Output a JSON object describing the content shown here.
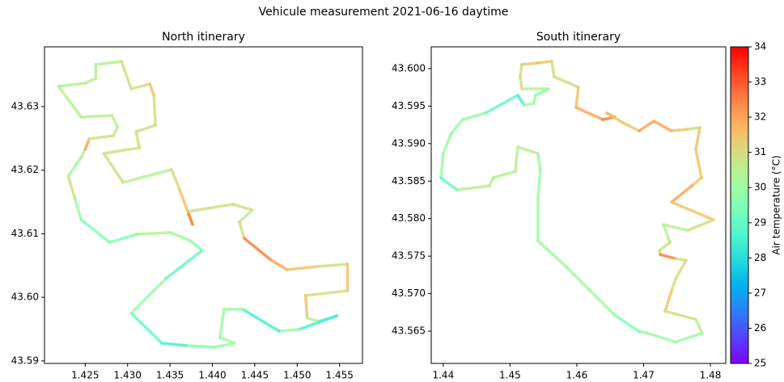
{
  "title": "Vehicule measurement 2021-06-16 daytime",
  "colorbar": {
    "label": "Air temperature (°C)",
    "colormap": "rainbow",
    "lim": [
      25,
      34
    ],
    "ticks": [
      25,
      26,
      27,
      28,
      29,
      30,
      31,
      32,
      33,
      34
    ]
  },
  "chart_data": [
    {
      "type": "line",
      "title": "North itinerary",
      "xlim": [
        1.4202,
        1.4577
      ],
      "ylim": [
        43.5896,
        43.6394
      ],
      "xticks": [
        1.425,
        {
          "value": 1.43,
          "label": "1.430"
        },
        1.435,
        {
          "value": 1.44,
          "label": "1.440"
        },
        1.445,
        {
          "value": 1.45,
          "label": "1.450"
        },
        1.455
      ],
      "yticks": [
        43.59,
        {
          "value": 43.6,
          "label": "43.60"
        },
        43.61,
        43.62,
        43.63
      ],
      "x": [
        1.42186,
        1.425,
        1.42624,
        1.42624,
        1.42928,
        1.43043,
        1.43262,
        1.43309,
        1.43328,
        1.431,
        1.43138,
        1.42719,
        1.42947,
        1.43519,
        1.43614,
        1.43766,
        1.43709,
        1.44242,
        1.44471,
        1.44318,
        1.44375,
        1.4469,
        1.4488,
        1.45242,
        1.45594,
        1.45594,
        1.45099,
        1.45118,
        1.45261,
        1.4547,
        1.45023,
        1.44785,
        1.44356,
        1.44137,
        1.4409,
        1.44261,
        1.44023,
        1.4369,
        1.43404,
        1.43043,
        1.43452,
        1.4388,
        1.43738,
        1.435,
        1.43119,
        1.42786,
        1.42452,
        1.42376,
        1.423,
        1.42452,
        1.425,
        1.42548,
        1.42833,
        1.42881,
        1.42814,
        1.42452,
        1.42186
      ],
      "y": [
        43.63318,
        43.63368,
        43.63445,
        43.6366,
        43.63711,
        43.63279,
        43.63356,
        43.63178,
        43.62708,
        43.62606,
        43.62352,
        43.62263,
        43.61806,
        43.62009,
        43.61692,
        43.61146,
        43.61349,
        43.61463,
        43.61374,
        43.61184,
        43.6093,
        43.60587,
        43.60435,
        43.60485,
        43.60523,
        43.60104,
        43.60028,
        43.59673,
        43.59622,
        43.59711,
        43.59495,
        43.59469,
        43.59812,
        43.59812,
        43.59368,
        43.59279,
        43.59215,
        43.59241,
        43.59279,
        43.59749,
        43.60295,
        43.60739,
        43.60892,
        43.61019,
        43.60993,
        43.60866,
        43.61222,
        43.61565,
        43.61908,
        43.622,
        43.62327,
        43.62492,
        43.62543,
        43.62682,
        43.6286,
        43.62835,
        43.63318
      ],
      "c": [
        30.5,
        30.5,
        30.5,
        30.5,
        31,
        31,
        31.5,
        31,
        31,
        31,
        31,
        31,
        30.5,
        31,
        31.5,
        32.5,
        31,
        31,
        30.5,
        31,
        32.5,
        32,
        31.5,
        31,
        31.5,
        31,
        31.5,
        30.5,
        29,
        28.5,
        30,
        28.5,
        30,
        30,
        30,
        30,
        29.5,
        28.5,
        29,
        30,
        29,
        29.5,
        30,
        30.5,
        29.5,
        29.5,
        30,
        31,
        30,
        30.5,
        32,
        31,
        30.5,
        30.5,
        30.5,
        30.5,
        30.5
      ]
    },
    {
      "type": "line",
      "title": "South itinerary",
      "xlim": [
        1.4382,
        1.4823
      ],
      "ylim": [
        43.5607,
        43.6029
      ],
      "xticks": [
        1.44,
        1.45,
        1.46,
        1.47,
        1.48
      ],
      "yticks": [
        43.565,
        {
          "value": 43.57,
          "label": "43.570"
        },
        43.575,
        {
          "value": 43.58,
          "label": "43.580"
        },
        43.585,
        {
          "value": 43.59,
          "label": "43.590"
        },
        43.595,
        {
          "value": 43.6,
          "label": "43.600"
        }
      ],
      "x": [
        1.43964,
        1.44,
        1.44121,
        1.44291,
        1.4463,
        1.45115,
        1.45212,
        1.45357,
        1.45382,
        1.45576,
        1.45176,
        1.45151,
        1.45176,
        1.45418,
        1.45624,
        1.4566,
        1.46024,
        1.45988,
        1.46388,
        1.46569,
        1.46448,
        1.46691,
        1.46933,
        1.47151,
        1.47418,
        1.4766,
        1.47842,
        1.47781,
        1.47866,
        1.47721,
        1.47418,
        1.48048,
        1.4766,
        1.47297,
        1.47394,
        1.47236,
        1.47248,
        1.47478,
        1.47636,
        1.47478,
        1.47418,
        1.47321,
        1.47781,
        1.47878,
        1.47478,
        1.47054,
        1.46933,
        1.46569,
        1.46206,
        1.45842,
        1.45418,
        1.45418,
        1.45454,
        1.45418,
        1.45115,
        1.45079,
        1.44751,
        1.44691,
        1.44206,
        1.43964
      ],
      "y": [
        43.58545,
        43.58868,
        43.59138,
        43.59321,
        43.59407,
        43.59644,
        43.59515,
        43.59536,
        43.59644,
        43.5973,
        43.5973,
        43.59892,
        43.60054,
        43.60075,
        43.60097,
        43.59892,
        43.59752,
        43.59483,
        43.59321,
        43.59353,
        43.59407,
        43.59278,
        43.5917,
        43.59299,
        43.5917,
        43.59191,
        43.59213,
        43.58922,
        43.58545,
        43.58437,
        43.58221,
        43.57984,
        43.57844,
        43.57919,
        43.57682,
        43.57574,
        43.57521,
        43.57467,
        43.57445,
        43.57197,
        43.57035,
        43.56766,
        43.56658,
        43.56475,
        43.56356,
        43.56475,
        43.56496,
        43.56712,
        43.57035,
        43.57359,
        43.57704,
        43.58275,
        43.58652,
        43.58868,
        43.58954,
        43.58631,
        43.58545,
        43.58437,
        43.58383,
        43.58545
      ],
      "c": [
        30,
        30,
        30,
        30,
        29,
        28.5,
        30,
        30,
        29.5,
        30.5,
        31,
        31,
        31.5,
        31.5,
        31,
        31,
        31.5,
        32,
        32.5,
        32,
        31.5,
        31.5,
        32,
        32,
        31.5,
        31,
        31.5,
        31.5,
        31.5,
        32,
        31.5,
        31,
        30.5,
        30.5,
        31,
        31,
        32.5,
        31,
        31,
        31,
        31.5,
        31,
        30.5,
        30,
        30,
        30,
        29.5,
        30,
        30,
        30,
        30,
        30,
        30,
        30.5,
        30.5,
        30.5,
        30.5,
        30.5,
        29,
        30
      ]
    }
  ]
}
